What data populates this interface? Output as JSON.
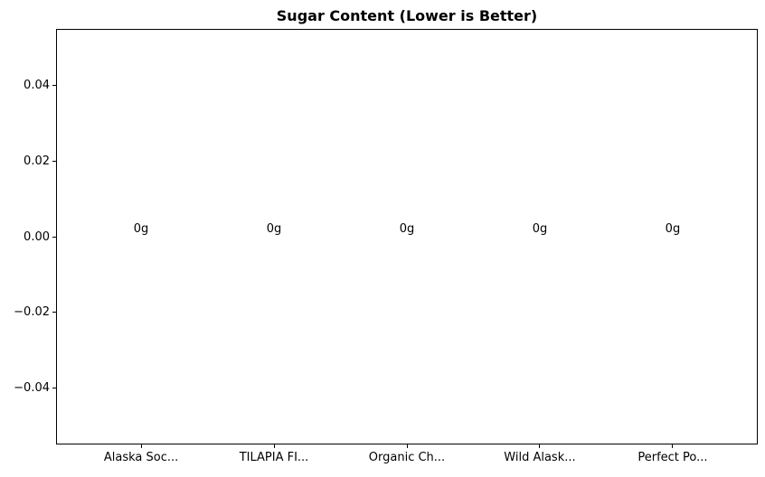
{
  "chart_data": {
    "type": "bar",
    "title": "Sugar Content (Lower is Better)",
    "categories": [
      "Alaska Soc...",
      "TILAPIA FI...",
      "Organic Ch...",
      "Wild Alask...",
      "Perfect Po..."
    ],
    "values": [
      0,
      0,
      0,
      0,
      0
    ],
    "bar_labels": [
      "0g",
      "0g",
      "0g",
      "0g",
      "0g"
    ],
    "xlabel": "",
    "ylabel": "",
    "ylim": [
      -0.055,
      0.055
    ],
    "yticks": [
      {
        "value": 0.04,
        "label": "0.04"
      },
      {
        "value": 0.02,
        "label": "0.02"
      },
      {
        "value": 0.0,
        "label": "0.00"
      },
      {
        "value": -0.02,
        "label": "−0.02"
      },
      {
        "value": -0.04,
        "label": "−0.04"
      }
    ],
    "grid": false,
    "legend": null,
    "colors": {
      "background": "#ffffff",
      "axis": "#000000",
      "text": "#000000"
    }
  }
}
